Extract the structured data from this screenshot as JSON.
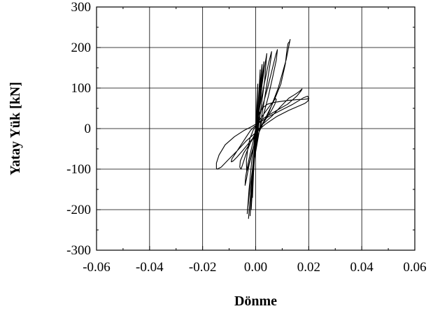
{
  "chart_data": {
    "type": "line",
    "title": "",
    "xlabel": "Dönme",
    "ylabel": "Yatay Yük [kN]",
    "xlim": [
      -0.06,
      0.06
    ],
    "ylim": [
      -300,
      300
    ],
    "x_ticks": [
      -0.06,
      -0.04,
      -0.02,
      0.0,
      0.02,
      0.04,
      0.06
    ],
    "x_tick_labels": [
      "-0.06",
      "-0.04",
      "-0.02",
      "0.00",
      "0.02",
      "0.04",
      "0.06"
    ],
    "y_ticks": [
      -300,
      -200,
      -100,
      0,
      100,
      200,
      300
    ],
    "y_tick_labels": [
      "-300",
      "-200",
      "-100",
      "0",
      "100",
      "200",
      "300"
    ],
    "grid": true,
    "legend": "none",
    "series": [
      {
        "color": "#000000",
        "x": [
          0.0,
          0.0004,
          0.0008,
          0.0005,
          0.0,
          -0.0004,
          -0.0007,
          -0.0004,
          0.0,
          0.0008,
          0.0014,
          0.0017,
          0.0012,
          0.0005,
          -0.0003,
          -0.0009,
          -0.0012,
          -0.0008,
          -0.0002,
          0.0008,
          0.0016,
          0.0022,
          0.0024,
          0.0018,
          0.0009,
          -0.0002,
          -0.001,
          -0.0015,
          -0.0017,
          -0.0011,
          -0.0003,
          0.0008,
          0.0018,
          0.0027,
          0.0031,
          0.0025,
          0.0014,
          0.0001,
          -0.0009,
          -0.0016,
          -0.002,
          -0.0021,
          -0.0013,
          -0.0004,
          0.001,
          0.0022,
          0.0034,
          0.004,
          0.0042,
          0.0033,
          0.0018,
          0.0,
          -0.0012,
          -0.002,
          -0.0025,
          -0.0027,
          -0.0018,
          -0.0006,
          0.001,
          0.0025,
          0.004,
          0.0052,
          0.0058,
          0.006,
          0.0048,
          0.0026,
          0.0003,
          -0.0015,
          -0.0025,
          -0.003,
          -0.0032,
          -0.0022,
          -0.0008,
          0.0008,
          0.0028,
          0.0048,
          0.0065,
          0.0078,
          0.0082,
          0.0075,
          0.0045,
          0.0015,
          -0.0005,
          -0.002,
          -0.003,
          -0.0038,
          -0.004,
          -0.0035,
          -0.0025,
          -0.001,
          0.0012,
          0.004,
          0.007,
          0.0095,
          0.0112,
          0.0118,
          0.0122,
          0.0128,
          0.013,
          0.0115,
          0.0085,
          0.005,
          0.0015,
          -0.0005,
          -0.0025,
          -0.0045,
          -0.0058,
          -0.006,
          -0.0055,
          -0.0045,
          -0.0035,
          -0.002,
          0.0,
          0.0025,
          0.006,
          0.0095,
          0.0125,
          0.015,
          0.0165,
          0.0172,
          0.0175,
          0.0172,
          0.0155,
          0.012,
          0.008,
          0.004,
          0.001,
          -0.0015,
          -0.0045,
          -0.008,
          -0.0115,
          -0.0138,
          -0.0148,
          -0.0148,
          -0.0145,
          -0.013,
          -0.0105,
          -0.007,
          -0.0035,
          0.0,
          0.0035,
          0.008,
          0.0125,
          0.016,
          0.0185,
          0.0197,
          0.02,
          0.0196,
          0.018,
          0.014,
          0.0095,
          0.005,
          0.0015,
          -0.0005,
          -0.002,
          -0.0035,
          -0.0055,
          -0.0075,
          -0.009,
          -0.0092,
          -0.0085,
          -0.007,
          -0.005,
          -0.0025,
          0.0,
          0.0015,
          0.003,
          0.0045,
          0.006,
          0.0072,
          0.0078,
          0.0075,
          0.006,
          0.0035,
          0.0008,
          -0.001,
          -0.0022,
          -0.003,
          -0.0035,
          -0.0034,
          -0.0028,
          -0.0015,
          0.0,
          0.0008,
          0.0012,
          0.0008,
          0.0,
          -0.0004,
          -0.0006,
          -0.0003,
          0.0,
          0.0006,
          0.0016,
          0.0028,
          0.0044,
          0.0064,
          0.0084,
          0.0106,
          0.0128,
          0.0148,
          0.0165,
          0.018,
          0.0192,
          0.02,
          0.0202
        ],
        "y": [
          0,
          60,
          110,
          40,
          -20,
          -60,
          -90,
          -30,
          0,
          50,
          110,
          145,
          80,
          20,
          -50,
          -120,
          -170,
          -110,
          -40,
          20,
          80,
          130,
          158,
          120,
          50,
          -30,
          -100,
          -160,
          -200,
          -140,
          -60,
          10,
          70,
          130,
          165,
          130,
          60,
          -20,
          -100,
          -165,
          -205,
          -215,
          -150,
          -70,
          0,
          60,
          120,
          170,
          185,
          150,
          80,
          -10,
          -100,
          -170,
          -205,
          -222,
          -160,
          -80,
          -20,
          40,
          100,
          150,
          175,
          190,
          160,
          90,
          10,
          -80,
          -150,
          -195,
          -210,
          -150,
          -80,
          -20,
          30,
          80,
          130,
          170,
          195,
          180,
          100,
          30,
          -20,
          -60,
          -90,
          -120,
          -140,
          -125,
          -90,
          -50,
          -10,
          30,
          70,
          110,
          160,
          195,
          210,
          215,
          220,
          170,
          100,
          40,
          0,
          -20,
          -40,
          -60,
          -80,
          -95,
          -100,
          -80,
          -60,
          -35,
          -10,
          10,
          30,
          55,
          75,
          85,
          92,
          96,
          98,
          94,
          80,
          60,
          45,
          30,
          15,
          5,
          -5,
          -20,
          -40,
          -65,
          -85,
          -98,
          -100,
          -95,
          -78,
          -55,
          -30,
          -10,
          10,
          30,
          45,
          55,
          62,
          68,
          75,
          80,
          76,
          60,
          45,
          30,
          15,
          5,
          -5,
          -20,
          -40,
          -60,
          -75,
          -82,
          -80,
          -70,
          -55,
          -35,
          -15,
          0,
          15,
          30,
          45,
          60,
          72,
          74,
          62,
          40,
          15,
          -5,
          -25,
          -50,
          -80,
          -105,
          -95,
          -60,
          -25,
          0,
          15,
          10,
          -5,
          -15,
          -20,
          -10,
          0,
          20,
          40,
          52,
          60,
          64,
          66,
          68,
          70,
          71,
          72,
          72,
          73,
          74,
          75
        ]
      }
    ]
  }
}
